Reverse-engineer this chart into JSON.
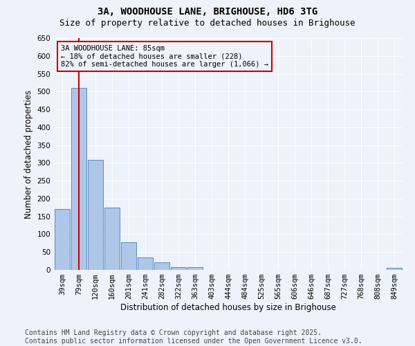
{
  "title": "3A, WOODHOUSE LANE, BRIGHOUSE, HD6 3TG",
  "subtitle": "Size of property relative to detached houses in Brighouse",
  "xlabel": "Distribution of detached houses by size in Brighouse",
  "ylabel": "Number of detached properties",
  "categories": [
    "39sqm",
    "79sqm",
    "120sqm",
    "160sqm",
    "201sqm",
    "241sqm",
    "282sqm",
    "322sqm",
    "363sqm",
    "403sqm",
    "444sqm",
    "484sqm",
    "525sqm",
    "565sqm",
    "606sqm",
    "646sqm",
    "687sqm",
    "727sqm",
    "768sqm",
    "808sqm",
    "849sqm"
  ],
  "values": [
    170,
    510,
    308,
    174,
    77,
    34,
    21,
    7,
    7,
    0,
    0,
    0,
    0,
    0,
    0,
    0,
    0,
    0,
    0,
    0,
    6
  ],
  "bar_color": "#aec6e8",
  "bar_edge_color": "#5b8db8",
  "vline_x": 1.0,
  "vline_color": "#cc0000",
  "vline_label_title": "3A WOODHOUSE LANE: 85sqm",
  "vline_label_line1": "← 18% of detached houses are smaller (228)",
  "vline_label_line2": "82% of semi-detached houses are larger (1,066) →",
  "annotation_box_color": "#cc0000",
  "ylim": [
    0,
    650
  ],
  "yticks": [
    0,
    50,
    100,
    150,
    200,
    250,
    300,
    350,
    400,
    450,
    500,
    550,
    600,
    650
  ],
  "background_color": "#eef2fa",
  "grid_color": "#ffffff",
  "footer": "Contains HM Land Registry data © Crown copyright and database right 2025.\nContains public sector information licensed under the Open Government Licence v3.0.",
  "title_fontsize": 10,
  "subtitle_fontsize": 9,
  "axis_label_fontsize": 8.5,
  "tick_fontsize": 7.5,
  "footer_fontsize": 7
}
